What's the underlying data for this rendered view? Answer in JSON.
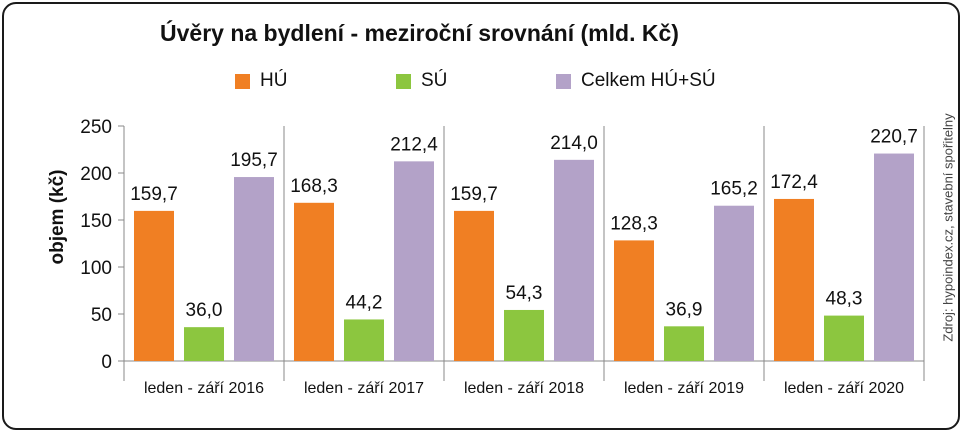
{
  "chart_data": {
    "type": "bar",
    "title": "Úvěry na bydlení - meziroční srovnání (mld. Kč)",
    "ylabel": "objem (kč)",
    "xlabel": "",
    "ylim": [
      0,
      250
    ],
    "yticks": [
      0,
      50,
      100,
      150,
      200,
      250
    ],
    "categories": [
      "leden - září 2016",
      "leden - září 2017",
      "leden - září 2018",
      "leden - září 2019",
      "leden - září 2020"
    ],
    "series": [
      {
        "name": "HÚ",
        "color": "#f07f23",
        "values": [
          159.7,
          168.3,
          159.7,
          128.3,
          172.4
        ],
        "labels": [
          "159,7",
          "168,3",
          "159,7",
          "128,3",
          "172,4"
        ]
      },
      {
        "name": "SÚ",
        "color": "#8cc63f",
        "values": [
          36.0,
          44.2,
          54.3,
          36.9,
          48.3
        ],
        "labels": [
          "36,0",
          "44,2",
          "54,3",
          "36,9",
          "48,3"
        ]
      },
      {
        "name": "Celkem HÚ+SÚ",
        "color": "#b3a2c8",
        "values": [
          195.7,
          212.4,
          214.0,
          165.2,
          220.7
        ],
        "labels": [
          "195,7",
          "212,4",
          "214,0",
          "165,2",
          "220,7"
        ]
      }
    ],
    "legend_position": "top",
    "grid": false,
    "category_separators": true,
    "source": "Zdroj: hypoindex.cz, stavební spořitelny"
  }
}
